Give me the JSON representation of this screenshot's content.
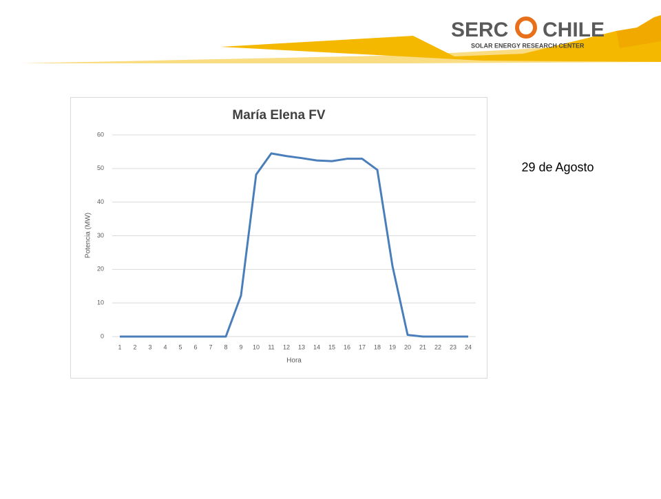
{
  "logo": {
    "left": "SERC",
    "right": "CHILE",
    "tagline": "SOLAR ENERGY RESEARCH CENTER"
  },
  "slide_note": "29 de Agosto",
  "chart_data": {
    "type": "line",
    "title": "María Elena FV",
    "x_label": "Hora",
    "y_label": "Potencia (MW)",
    "categories": [
      "1",
      "2",
      "3",
      "4",
      "5",
      "6",
      "7",
      "8",
      "9",
      "10",
      "11",
      "12",
      "13",
      "14",
      "15",
      "16",
      "17",
      "18",
      "19",
      "20",
      "21",
      "22",
      "23",
      "24"
    ],
    "series": [
      {
        "name": "María Elena FV",
        "color": "#4a7ebb",
        "values": [
          0,
          0,
          0,
          0,
          0,
          0,
          0,
          0,
          12.2,
          48.2,
          54.5,
          53.7,
          53.1,
          52.4,
          52.2,
          52.9,
          52.9,
          49.6,
          21,
          0.5,
          0,
          0,
          0,
          0
        ]
      }
    ],
    "ylim": [
      0,
      60
    ],
    "yticks": [
      0,
      10,
      20,
      30,
      40,
      50,
      60
    ],
    "grid": true
  }
}
